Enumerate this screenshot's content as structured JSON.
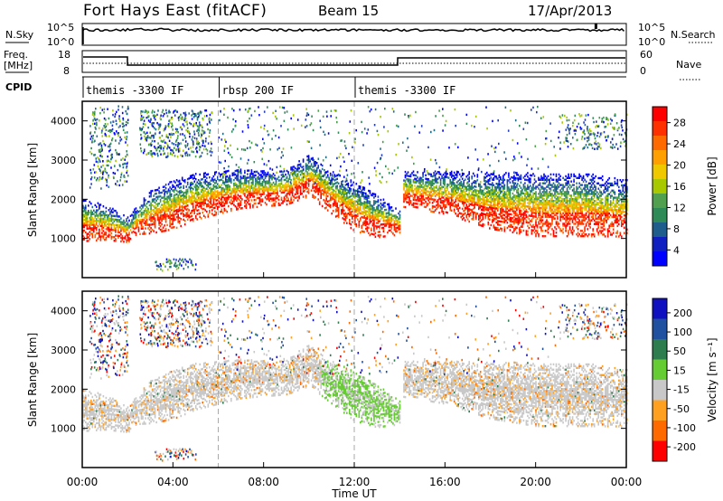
{
  "header": {
    "station": "Fort Hays East (fitACF)",
    "beam": "Beam 15",
    "date": "17/Apr/2013"
  },
  "top_panels": {
    "nsky_label": "N.Sky",
    "nsky_ticks": [
      "10^5",
      "10^0"
    ],
    "nsearch_label": "N.Search",
    "nsearch_ticks": [
      "10^5",
      "10^0"
    ],
    "freq_label_1": "Freq.",
    "freq_label_2": "[MHz]",
    "freq_ticks": [
      "18",
      "8"
    ],
    "nave_label": "Nave",
    "nave_ticks": [
      "60",
      "0"
    ],
    "cpid_label": "CPID",
    "cpid_segments": [
      {
        "start_hour": 0,
        "end_hour": 6,
        "label": "themis -3300 IF"
      },
      {
        "start_hour": 6,
        "end_hour": 12,
        "label": "rbsp 200 IF"
      },
      {
        "start_hour": 12,
        "end_hour": 24,
        "label": "themis -3300 IF"
      }
    ]
  },
  "power_colorbar": {
    "title": "Power [dB]",
    "ticks": [
      "28",
      "24",
      "20",
      "16",
      "12",
      "8",
      "4"
    ],
    "colors": [
      "#ff0000",
      "#ff3000",
      "#ff6a00",
      "#ffa000",
      "#f0c800",
      "#a8c800",
      "#50a050",
      "#2e8b57",
      "#1f5e8c",
      "#1020c0",
      "#0000ff"
    ]
  },
  "velocity_colorbar": {
    "title": "Velocity [m s⁻¹]",
    "ticks": [
      "200",
      "100",
      "50",
      "15",
      "-15",
      "-50",
      "-100",
      "-200"
    ],
    "colors": [
      "#1010c0",
      "#2050a0",
      "#2e7d4f",
      "#66cc33",
      "#c8c8c8",
      "#ffa020",
      "#ff6a00",
      "#ff0000"
    ]
  },
  "chart_data": [
    {
      "type": "heatmap",
      "panel": "power",
      "xlabel": "Time UT",
      "ylabel": "Slant Range [km]",
      "xlim": [
        0,
        24
      ],
      "ylim": [
        0,
        4500
      ],
      "x_tick_labels": [
        "00:00",
        "04:00",
        "08:00",
        "12:00",
        "16:00",
        "20:00",
        "00:00"
      ],
      "y_tick_labels": [
        "1000",
        "2000",
        "3000",
        "4000"
      ],
      "echo_band": {
        "hours": [
          0,
          1,
          2,
          2.5,
          3,
          4,
          5,
          6,
          7,
          8,
          9,
          10,
          11,
          12,
          13,
          14,
          14.01,
          16,
          18,
          20,
          22,
          24
        ],
        "center_km": [
          1450,
          1400,
          1200,
          1500,
          1650,
          1850,
          2050,
          2150,
          2250,
          2250,
          2300,
          2600,
          2150,
          1800,
          1550,
          1400,
          2250,
          2150,
          1950,
          1850,
          1850,
          1750
        ],
        "width_km": [
          600,
          500,
          350,
          450,
          600,
          700,
          650,
          600,
          550,
          500,
          500,
          600,
          600,
          700,
          600,
          350,
          500,
          600,
          800,
          900,
          900,
          800
        ]
      }
    },
    {
      "type": "heatmap",
      "panel": "velocity",
      "xlabel": "Time UT",
      "ylabel": "Slant Range [km]",
      "xlim": [
        0,
        24
      ],
      "ylim": [
        0,
        4500
      ],
      "x_tick_labels": [
        "00:00",
        "04:00",
        "08:00",
        "12:00",
        "16:00",
        "20:00",
        "00:00"
      ],
      "y_tick_labels": [
        "1000",
        "2000",
        "3000",
        "4000"
      ]
    }
  ]
}
